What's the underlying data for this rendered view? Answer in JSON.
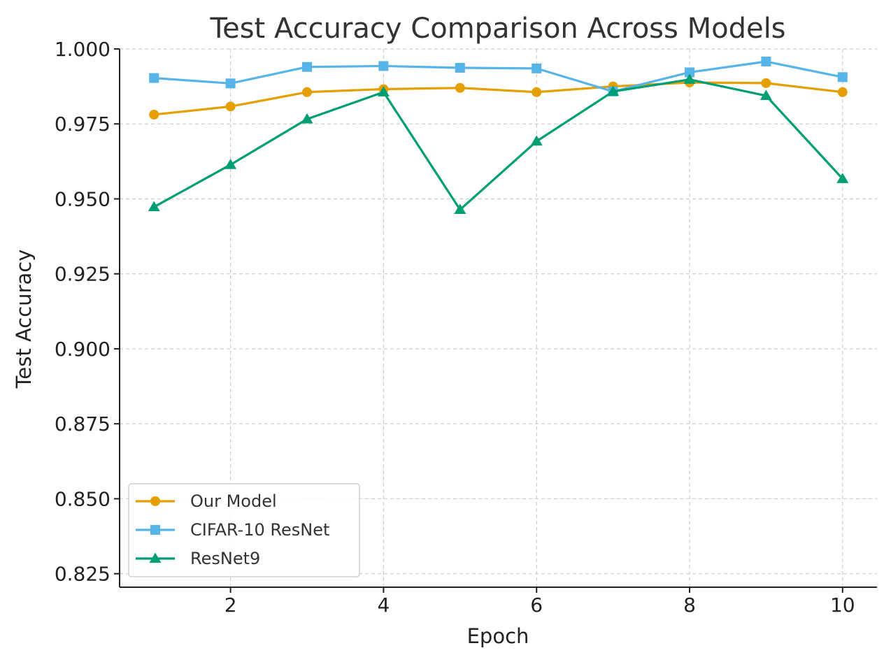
{
  "chart_data": {
    "type": "line",
    "title": "Test Accuracy Comparison Across Models",
    "xlabel": "Epoch",
    "ylabel": "Test Accuracy",
    "xlim": [
      0.55,
      10.45
    ],
    "ylim": [
      0.8205,
      1.0
    ],
    "x": [
      1,
      2,
      3,
      4,
      5,
      6,
      7,
      8,
      9,
      10
    ],
    "xticks": [
      2,
      4,
      6,
      8,
      10
    ],
    "xtick_labels": [
      "2",
      "4",
      "6",
      "8",
      "10"
    ],
    "yticks": [
      0.825,
      0.85,
      0.875,
      0.9,
      0.925,
      0.95,
      0.975,
      1.0
    ],
    "ytick_labels": [
      "0.825",
      "0.850",
      "0.875",
      "0.900",
      "0.925",
      "0.950",
      "0.975",
      "1.000"
    ],
    "grid": true,
    "legend_position": "lower-left",
    "series": [
      {
        "name": "Our Model",
        "color": "#E69F00",
        "marker": "circle",
        "values": [
          0.9781,
          0.9808,
          0.9856,
          0.9866,
          0.987,
          0.9856,
          0.9875,
          0.9888,
          0.9886,
          0.9856
        ]
      },
      {
        "name": "CIFAR-10 ResNet",
        "color": "#56B4E9",
        "marker": "square",
        "values": [
          0.9903,
          0.9885,
          0.994,
          0.9943,
          0.9937,
          0.9935,
          0.9858,
          0.9922,
          0.9958,
          0.9906
        ]
      },
      {
        "name": "ResNet9",
        "color": "#009E73",
        "marker": "triangle",
        "values": [
          0.9473,
          0.9614,
          0.9766,
          0.9856,
          0.9464,
          0.9692,
          0.9858,
          0.9898,
          0.9844,
          0.9567
        ]
      }
    ]
  }
}
